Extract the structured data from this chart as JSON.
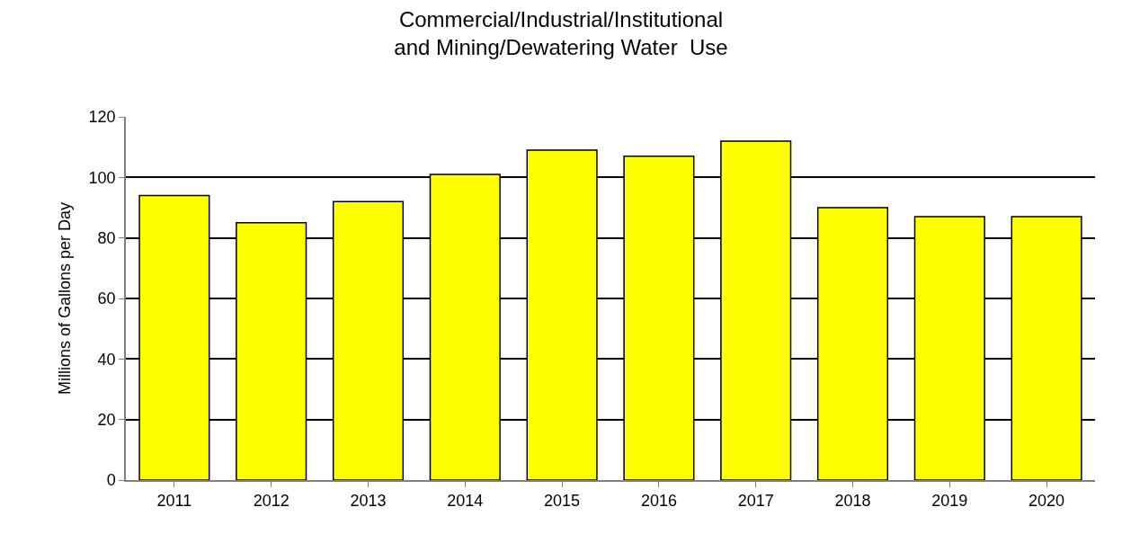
{
  "chart_data": {
    "type": "bar",
    "title": "Commercial/Industrial/Institutional\nand Mining/Dewatering Water  Use",
    "ylabel": "Millions of Gallons per Day",
    "categories": [
      "2011",
      "2012",
      "2013",
      "2014",
      "2015",
      "2016",
      "2017",
      "2018",
      "2019",
      "2020"
    ],
    "values": [
      94,
      85,
      92,
      101,
      109,
      107,
      112,
      90,
      87,
      87
    ],
    "color": "#ffff00",
    "ylim": [
      0,
      120
    ],
    "yticks": [
      0,
      20,
      40,
      60,
      80,
      100,
      120
    ],
    "grid": "y"
  }
}
